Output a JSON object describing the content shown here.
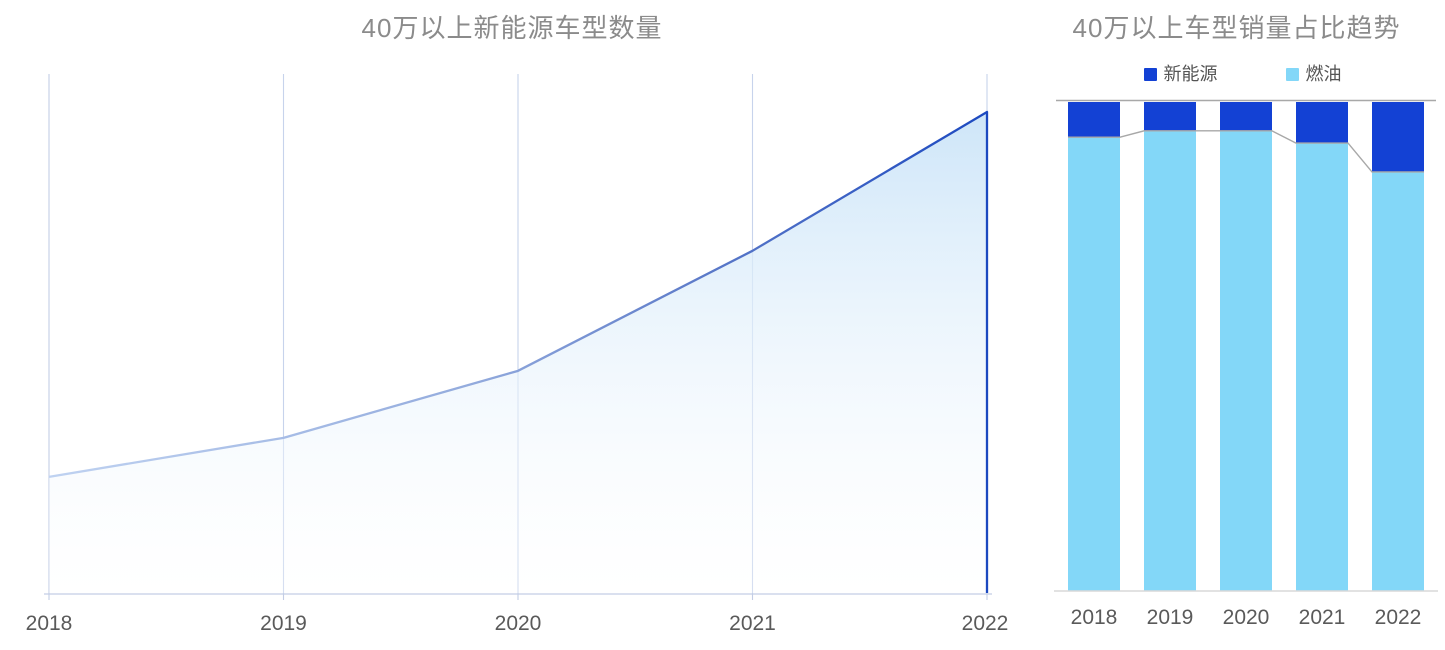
{
  "page": {
    "background": "#ffffff"
  },
  "chart_data": [
    {
      "id": "nev-model-count",
      "type": "area",
      "title": "40万以上新能源车型数量",
      "x": [
        "2018",
        "2019",
        "2020",
        "2021",
        "2022"
      ],
      "values_relative_pct_of_2022": [
        24.3,
        32.4,
        46.3,
        71.2,
        100
      ],
      "ylim": [
        0,
        108
      ],
      "y_axis_labels": "none",
      "grid": "vertical-only",
      "line_gradient": [
        "#bfd2f1",
        "#93abdd",
        "#5b79c8",
        "#1c49c0"
      ],
      "fill_gradient_top": "#cbe4f8",
      "fill_gradient_bottom": "#ffffff",
      "gridline_color": "#c7d3ec",
      "axis_color": "#c3cde5",
      "label_color": "#5a5a5a",
      "title_color": "#8b8b8b"
    },
    {
      "id": "sales-share-trend",
      "type": "bar",
      "stacked": "percent",
      "title": "40万以上车型销量占比趋势",
      "categories": [
        "2018",
        "2019",
        "2020",
        "2021",
        "2022"
      ],
      "series": [
        {
          "name": "新能源",
          "color": "#1341d4",
          "values": [
            7.2,
            5.9,
            5.9,
            8.4,
            14.3
          ]
        },
        {
          "name": "燃油",
          "color": "#83d7f8",
          "values": [
            92.8,
            94.1,
            94.1,
            91.6,
            85.7
          ]
        }
      ],
      "ylim": [
        0,
        100
      ],
      "legend_position": "top",
      "connector_line_color": "#a8a8a8",
      "axis_line_color": "#d9d9d9",
      "label_color": "#5a5a5a",
      "title_color": "#8b8b8b"
    }
  ]
}
